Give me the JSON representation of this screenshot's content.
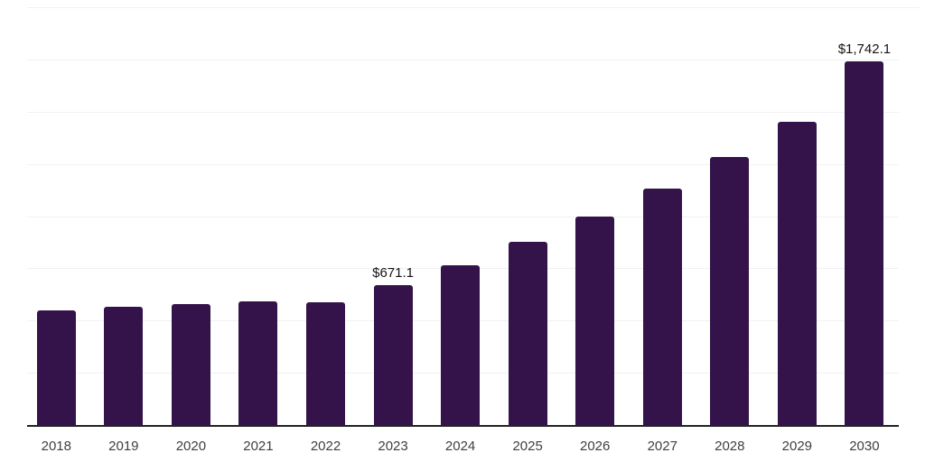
{
  "chart_data": {
    "type": "bar",
    "title": "",
    "categories": [
      "2018",
      "2019",
      "2020",
      "2021",
      "2022",
      "2023",
      "2024",
      "2025",
      "2026",
      "2027",
      "2028",
      "2029",
      "2030"
    ],
    "values": [
      550,
      568,
      581,
      593,
      589,
      671.1,
      766,
      876,
      999,
      1130,
      1282,
      1452,
      1742.1
    ],
    "data_labels": [
      {
        "category": "2023",
        "text": "$671.1"
      },
      {
        "category": "2030",
        "text": "$1,742.1"
      }
    ],
    "xlabel": "",
    "ylabel": "",
    "ylim": [
      0,
      2000
    ],
    "gridline_step": 250,
    "grid": "horizontal, no y tick labels, no legend",
    "legend": "none",
    "colors": {
      "bar": "#331349",
      "gridline": "#f1f1f3",
      "axis_line": "#222222",
      "tick_label": "#3f3f3f",
      "data_label": "#141414",
      "background": "#ffffff"
    }
  }
}
